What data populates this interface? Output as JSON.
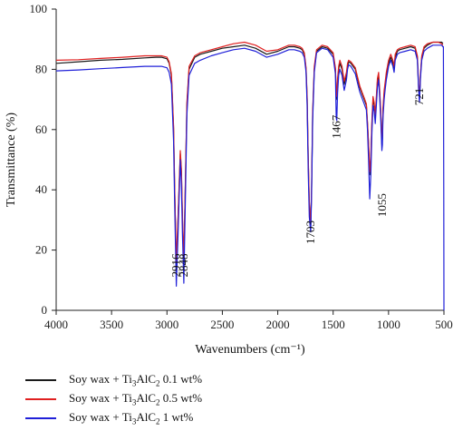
{
  "chart_data": {
    "type": "line",
    "title": "",
    "xlabel": "Wavenumbers (cm⁻¹)",
    "ylabel": "Transmittance (%)",
    "xlim": [
      4000,
      500
    ],
    "ylim": [
      0,
      100
    ],
    "x_ticks": [
      4000,
      3500,
      3000,
      2500,
      2000,
      1500,
      1000,
      500
    ],
    "y_ticks": [
      0,
      20,
      40,
      60,
      80,
      100
    ],
    "grid": false,
    "legend_position": "bottom",
    "annotations": [
      {
        "text": "2916",
        "x": 2916,
        "y": 11
      },
      {
        "text": "2848",
        "x": 2848,
        "y": 11
      },
      {
        "text": "1703",
        "x": 1703,
        "y": 22
      },
      {
        "text": "1467",
        "x": 1467,
        "y": 57
      },
      {
        "text": "1055",
        "x": 1055,
        "y": 31
      },
      {
        "text": "721",
        "x": 721,
        "y": 68
      }
    ],
    "series": [
      {
        "name": "Soy wax + Ti3AlC2 0.1 wt%",
        "name_parts": [
          "Soy wax + Ti",
          "3",
          "AlC",
          "2",
          " 0.1 wt%"
        ],
        "color": "#1a1a1a",
        "x": [
          4000,
          3800,
          3600,
          3400,
          3200,
          3100,
          3050,
          3000,
          2980,
          2960,
          2940,
          2930,
          2916,
          2900,
          2880,
          2870,
          2860,
          2848,
          2835,
          2820,
          2800,
          2750,
          2700,
          2600,
          2500,
          2400,
          2300,
          2200,
          2100,
          2000,
          1900,
          1850,
          1800,
          1780,
          1760,
          1745,
          1735,
          1725,
          1715,
          1703,
          1695,
          1685,
          1670,
          1650,
          1600,
          1550,
          1500,
          1480,
          1472,
          1467,
          1460,
          1450,
          1440,
          1420,
          1400,
          1380,
          1370,
          1360,
          1340,
          1300,
          1280,
          1260,
          1240,
          1220,
          1200,
          1190,
          1180,
          1170,
          1160,
          1150,
          1140,
          1130,
          1120,
          1110,
          1100,
          1090,
          1080,
          1070,
          1060,
          1055,
          1050,
          1040,
          1030,
          1020,
          1000,
          980,
          960,
          950,
          940,
          920,
          900,
          850,
          800,
          760,
          740,
          730,
          721,
          712,
          700,
          680,
          650,
          600,
          550,
          520,
          510
        ],
        "y": [
          82,
          82.5,
          83,
          83.3,
          83.8,
          84,
          84,
          83.5,
          82,
          78,
          60,
          40,
          15,
          30,
          52,
          46,
          30,
          16,
          40,
          68,
          80,
          84,
          85,
          86,
          87,
          87.5,
          88,
          87,
          85,
          86,
          87.5,
          87.5,
          87,
          86.5,
          85,
          80,
          70,
          50,
          35,
          27,
          40,
          65,
          80,
          86,
          87.5,
          87,
          85,
          80,
          72,
          70,
          76,
          80,
          82,
          80,
          75,
          78,
          81,
          82.5,
          82,
          80,
          77,
          74,
          72,
          70,
          68,
          62,
          55,
          45,
          50,
          62,
          70,
          68,
          64,
          70,
          76,
          78,
          72,
          65,
          55,
          57,
          66,
          72,
          75,
          78,
          82,
          84,
          82,
          80,
          84,
          86,
          86.5,
          87,
          87.5,
          87,
          84,
          75,
          70,
          78,
          84,
          87,
          88,
          89,
          89,
          89,
          88.5
        ]
      },
      {
        "name": "Soy wax + Ti3AlC2 0.5 wt%",
        "name_parts": [
          "Soy wax + Ti",
          "3",
          "AlC",
          "2",
          " 0.5 wt%"
        ],
        "color": "#e02020",
        "x": [
          4000,
          3800,
          3600,
          3400,
          3200,
          3100,
          3050,
          3000,
          2980,
          2960,
          2940,
          2930,
          2916,
          2900,
          2880,
          2870,
          2860,
          2848,
          2835,
          2820,
          2800,
          2750,
          2700,
          2600,
          2500,
          2400,
          2300,
          2200,
          2100,
          2000,
          1900,
          1850,
          1800,
          1780,
          1760,
          1745,
          1735,
          1725,
          1715,
          1703,
          1695,
          1685,
          1670,
          1650,
          1600,
          1550,
          1500,
          1480,
          1472,
          1467,
          1460,
          1450,
          1440,
          1420,
          1400,
          1380,
          1370,
          1360,
          1340,
          1300,
          1280,
          1260,
          1240,
          1220,
          1200,
          1190,
          1180,
          1170,
          1160,
          1150,
          1140,
          1130,
          1120,
          1110,
          1100,
          1090,
          1080,
          1070,
          1060,
          1055,
          1050,
          1040,
          1030,
          1020,
          1000,
          980,
          960,
          950,
          940,
          920,
          900,
          850,
          800,
          760,
          740,
          730,
          721,
          712,
          700,
          680,
          650,
          600,
          550,
          520,
          510
        ],
        "y": [
          83,
          83.2,
          83.6,
          84,
          84.5,
          84.5,
          84.5,
          84,
          82.5,
          78.5,
          61,
          41,
          16,
          31,
          53,
          47,
          31,
          17,
          41,
          69,
          81,
          84.5,
          85.5,
          86.5,
          87.5,
          88.5,
          89,
          88,
          86,
          86.5,
          88,
          88,
          87.5,
          87,
          85.5,
          80.5,
          71,
          51,
          36,
          28,
          41,
          66,
          81,
          86.5,
          88,
          87.5,
          85.5,
          80.5,
          73,
          71,
          77,
          81,
          83,
          81,
          76,
          79,
          82,
          83,
          82.5,
          80.5,
          77.5,
          74.5,
          72.5,
          70.5,
          68.5,
          62.5,
          55.5,
          46,
          51,
          63,
          71,
          69,
          65,
          71,
          77,
          79,
          73,
          66,
          56,
          58,
          67,
          73,
          76,
          79,
          83,
          85,
          83,
          81,
          85,
          86.5,
          87,
          87.5,
          88,
          87.5,
          84.5,
          75.5,
          70.5,
          78.5,
          84.5,
          87.5,
          88.5,
          89,
          89,
          88.5,
          88
        ]
      },
      {
        "name": "Soy wax + Ti3AlC2 1 wt%",
        "name_parts": [
          "Soy wax + Ti",
          "3",
          "AlC",
          "2",
          " 1 wt%"
        ],
        "color": "#2020d8",
        "x": [
          4000,
          3800,
          3600,
          3400,
          3200,
          3100,
          3050,
          3000,
          2980,
          2960,
          2940,
          2930,
          2916,
          2900,
          2880,
          2870,
          2860,
          2848,
          2835,
          2820,
          2800,
          2750,
          2700,
          2600,
          2500,
          2400,
          2300,
          2200,
          2100,
          2000,
          1900,
          1850,
          1800,
          1780,
          1760,
          1745,
          1735,
          1725,
          1715,
          1703,
          1695,
          1685,
          1670,
          1650,
          1600,
          1550,
          1500,
          1480,
          1472,
          1467,
          1460,
          1450,
          1440,
          1420,
          1400,
          1380,
          1370,
          1360,
          1340,
          1300,
          1280,
          1260,
          1240,
          1220,
          1200,
          1190,
          1180,
          1170,
          1160,
          1150,
          1140,
          1130,
          1120,
          1110,
          1100,
          1090,
          1080,
          1070,
          1060,
          1055,
          1050,
          1040,
          1030,
          1020,
          1000,
          980,
          960,
          950,
          940,
          920,
          900,
          850,
          800,
          760,
          740,
          730,
          721,
          712,
          700,
          680,
          650,
          600,
          550,
          520,
          510,
          505,
          502,
          500
        ],
        "y": [
          79.5,
          79.8,
          80.2,
          80.6,
          81,
          81,
          81,
          80.5,
          79,
          75,
          56,
          35,
          8,
          25,
          50,
          42,
          25,
          9,
          35,
          65,
          78,
          82,
          83,
          84.5,
          85.5,
          86.5,
          87,
          86,
          84,
          85,
          86.5,
          86.5,
          86,
          85.5,
          84,
          79,
          68,
          46,
          31,
          26,
          38,
          63,
          79,
          85.5,
          87,
          86.5,
          84,
          78.5,
          64,
          63,
          72,
          78,
          80,
          78,
          73,
          76.5,
          80,
          81.5,
          81,
          78.5,
          75.5,
          72.5,
          70.5,
          68.5,
          66.5,
          60,
          50,
          37,
          45,
          59,
          68,
          66,
          62,
          68,
          74,
          76.5,
          70.5,
          63,
          53,
          55,
          64,
          70,
          73.5,
          76.5,
          81,
          83,
          81,
          79,
          83,
          85,
          85.5,
          86,
          86.5,
          86,
          83,
          74,
          69,
          77,
          83,
          86,
          87,
          88,
          88,
          88,
          87.5,
          87.5,
          40,
          0
        ]
      }
    ]
  }
}
